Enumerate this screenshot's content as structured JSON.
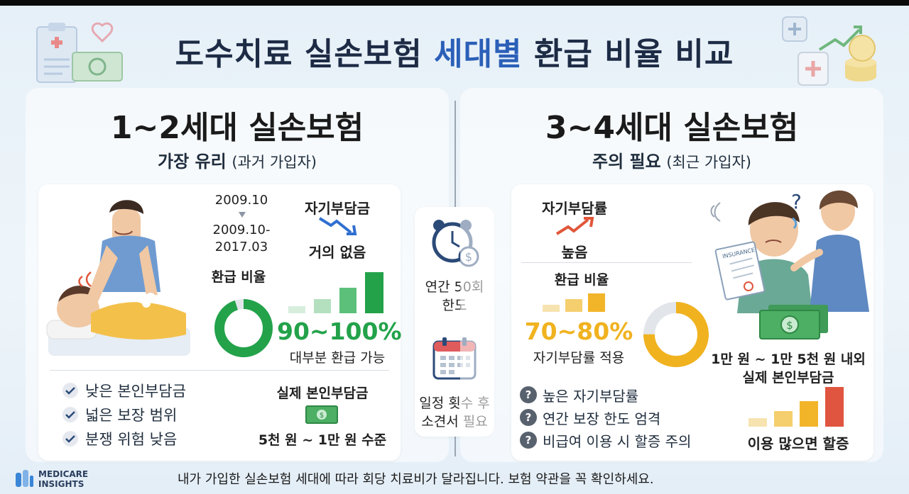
{
  "title": {
    "part1": "도수치료 실손보험 ",
    "accent": "세대별",
    "part2": " 환급 비율 비교"
  },
  "left": {
    "gen_title": "1~2세대 실손보험",
    "sub_strong": "가장 유리",
    "sub_weak": "(과거 가입자)",
    "date1": "2009.10",
    "date2a": "2009.10-",
    "date2b": "2017.03",
    "copay_label": "자기부담금",
    "copay_value": "거의 없음",
    "refund_label": "환급 비율",
    "refund_pct": "90~100%",
    "refund_note": "대부분 환급 가능",
    "benefits": [
      "낮은 본인부담금",
      "넓은 보장 범위",
      "분쟁 위험 낮음"
    ],
    "actual_label": "실제 본인부담금",
    "actual_value": "5천 원 ~ 1만 원 수준",
    "donut_fraction": 0.95,
    "donut_color": "#23a24a"
  },
  "center": {
    "line1a": "연간 50회",
    "line1b": "한도",
    "line2a": "일정 횟수 후",
    "line2b": "소견서 필요"
  },
  "right": {
    "gen_title": "3~4세대 실손보험",
    "sub_strong": "주의 필요",
    "sub_weak": "(최근 가입자)",
    "copay_label": "자기부담률",
    "copay_value": "높음",
    "refund_label": "환급 비율",
    "refund_pct": "70~80%",
    "refund_note": "자기부담률 적용",
    "actual_a": "1만 원 ~ 1만 5천 원 내외",
    "actual_b": "실제 본인부담금",
    "cautions": [
      "높은 자기부담률",
      "연간 보장 한도 엄격",
      "비급여 이용 시 할증 주의"
    ],
    "surcharge": "이용 많으면 할증",
    "insurance_doc": "INSURANCE",
    "donut_fraction": 0.75,
    "donut_color": "#f0b21f"
  },
  "footer": "내가 가입한 실손보험 세대에 따라 회당 치료비가 달라집니다. 보험 약관을 꼭 확인하세요.",
  "logo": {
    "line1": "MEDICARE",
    "line2": "INSIGHTS"
  },
  "colors": {
    "green": "#23a24a",
    "gold": "#f0b21f",
    "navy": "#1d2b45",
    "accent_blue": "#2b5fb8"
  }
}
